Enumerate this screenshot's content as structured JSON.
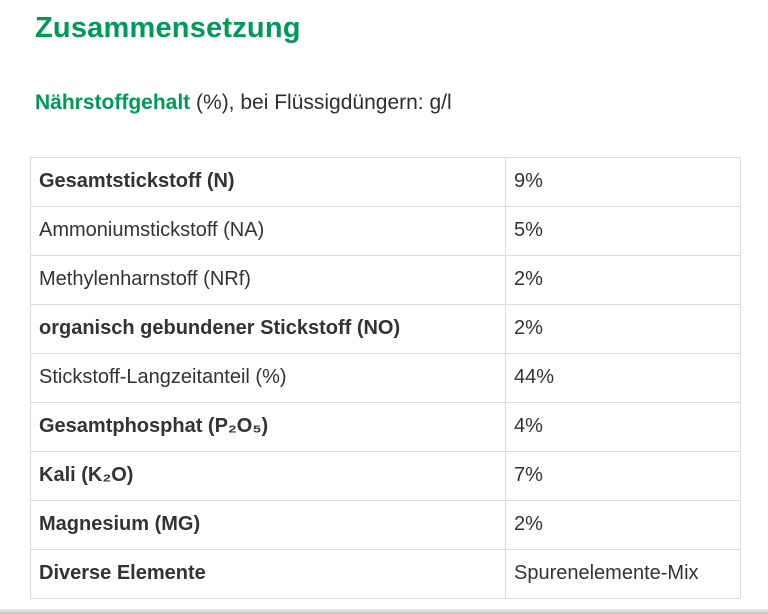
{
  "page": {
    "title": "Zusammensetzung",
    "subtitle_term": "Nährstoffgehalt",
    "subtitle_rest": " (%), bei Flüssigdüngern: g/l"
  },
  "table": {
    "rows": [
      {
        "label": "Gesamtstickstoff (N)",
        "value": "9%",
        "emphasis": true
      },
      {
        "label": "Ammoniumstickstoff (NA)",
        "value": "5%",
        "emphasis": false
      },
      {
        "label": "Methylenharnstoff (NRf)",
        "value": "2%",
        "emphasis": false
      },
      {
        "label": "organisch gebundener Stickstoff (NO)",
        "value": "2%",
        "emphasis": true
      },
      {
        "label": "Stickstoff-Langzeitanteil (%)",
        "value": "44%",
        "emphasis": false
      },
      {
        "label": "Gesamtphosphat (P₂O₅)",
        "value": "4%",
        "emphasis": true
      },
      {
        "label": "Kali (K₂O)",
        "value": "7%",
        "emphasis": true
      },
      {
        "label": "Magnesium (MG)",
        "value": "2%",
        "emphasis": true
      },
      {
        "label": "Diverse Elemente",
        "value": "Spurenelemente-Mix",
        "emphasis": true
      }
    ]
  },
  "colors": {
    "accent_green": "#009a57",
    "body_text": "#333333",
    "table_border": "#dcdcdc"
  }
}
